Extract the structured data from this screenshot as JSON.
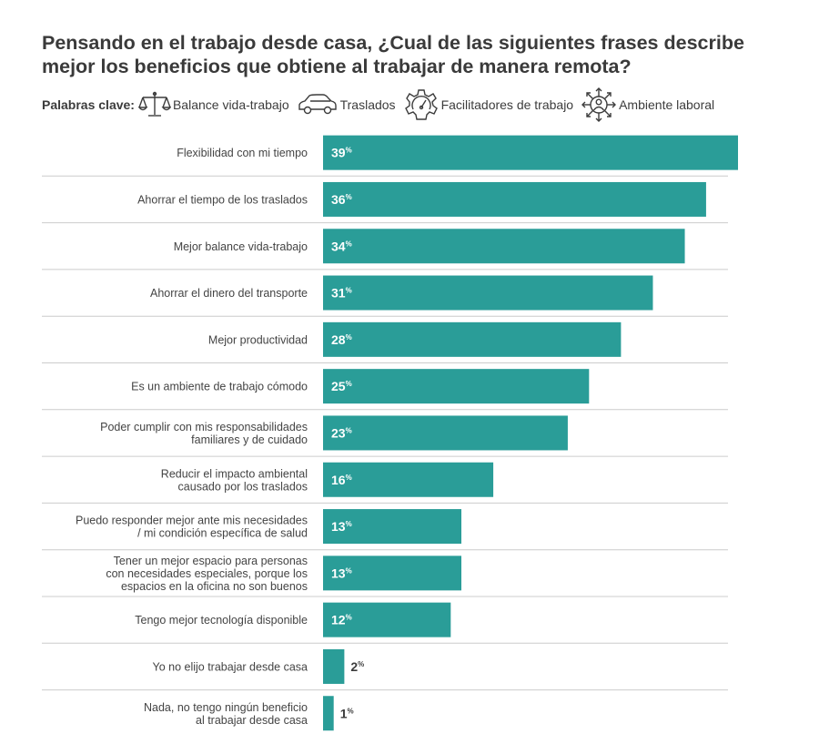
{
  "title": "Pensando en el trabajo desde casa, ¿Cual de las siguientes frases describe mejor los beneficios que obtiene al trabajar de manera remota?",
  "keywords": {
    "label": "Palabras clave:",
    "items": [
      {
        "icon": "balance-scale-icon",
        "text": "Balance vida-trabajo"
      },
      {
        "icon": "car-icon",
        "text": "Traslados"
      },
      {
        "icon": "gear-speedometer-icon",
        "text": "Facilitadores de trabajo"
      },
      {
        "icon": "person-arrows-icon",
        "text": "Ambiente laboral"
      }
    ]
  },
  "colors": {
    "bar": "#2a9d98",
    "divider": "#cccccc"
  },
  "chart_data": {
    "type": "bar",
    "orientation": "horizontal",
    "unit": "%",
    "xlim": [
      0,
      39
    ],
    "categories": [
      [
        "Flexibilidad con mi tiempo"
      ],
      [
        "Ahorrar el tiempo de los traslados"
      ],
      [
        "Mejor balance vida-trabajo"
      ],
      [
        "Ahorrar el dinero del transporte"
      ],
      [
        "Mejor productividad"
      ],
      [
        "Es un ambiente de trabajo cómodo"
      ],
      [
        "Poder cumplir con mis responsabilidades",
        "familiares y de cuidado"
      ],
      [
        "Reducir el impacto ambiental",
        "causado por los traslados"
      ],
      [
        "Puedo responder mejor ante mis necesidades",
        "/ mi condición específica de salud"
      ],
      [
        "Tener un mejor espacio para personas",
        "con necesidades especiales, porque los",
        "espacios en la oficina no son buenos"
      ],
      [
        "Tengo mejor tecnología disponible"
      ],
      [
        "Yo no elijo trabajar desde casa"
      ],
      [
        "Nada, no tengo ningún beneficio",
        "al trabajar desde casa"
      ]
    ],
    "values": [
      39,
      36,
      34,
      31,
      28,
      25,
      23,
      16,
      13,
      13,
      12,
      2,
      1
    ]
  }
}
